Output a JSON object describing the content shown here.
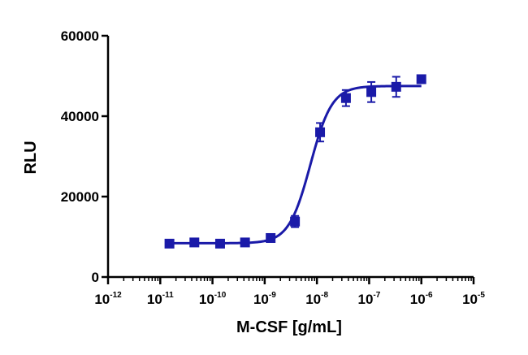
{
  "chart_data": {
    "type": "scatter",
    "title": "",
    "xlabel": "M-CSF [g/mL]",
    "ylabel": "RLU",
    "x_scale": "log",
    "xlim": [
      1e-12,
      1e-05
    ],
    "ylim": [
      0,
      60000
    ],
    "y_ticks": [
      0,
      20000,
      40000,
      60000
    ],
    "y_tick_labels": [
      "0",
      "20000",
      "40000",
      "60000"
    ],
    "x_tick_base": "10",
    "x_tick_exponents": [
      "-12",
      "-11",
      "-10",
      "-9",
      "-8",
      "-7",
      "-6",
      "-5"
    ],
    "grid": false,
    "legend": "none",
    "color": "#1a1aa8",
    "series": [
      {
        "points": [
          {
            "x": 1.5e-11,
            "y": 8300,
            "err": 400
          },
          {
            "x": 4.5e-11,
            "y": 8600,
            "err": 400
          },
          {
            "x": 1.4e-10,
            "y": 8300,
            "err": 350
          },
          {
            "x": 4.2e-10,
            "y": 8600,
            "err": 400
          },
          {
            "x": 1.3e-09,
            "y": 9700,
            "err": 600
          },
          {
            "x": 3.8e-09,
            "y": 13800,
            "err": 1400
          },
          {
            "x": 1.15e-08,
            "y": 36000,
            "err": 2300
          },
          {
            "x": 3.6e-08,
            "y": 44500,
            "err": 2000
          },
          {
            "x": 1.1e-07,
            "y": 46000,
            "err": 2500
          },
          {
            "x": 3.3e-07,
            "y": 47300,
            "err": 2500
          },
          {
            "x": 1e-06,
            "y": 49200,
            "err": 1000
          }
        ]
      }
    ],
    "fit": {
      "model": "four-parameter logistic",
      "bottom": 8400,
      "top": 47500,
      "ec50": 7.5e-09,
      "hill": 2.1,
      "x_range": [
        1.5e-11,
        1e-06
      ]
    }
  }
}
